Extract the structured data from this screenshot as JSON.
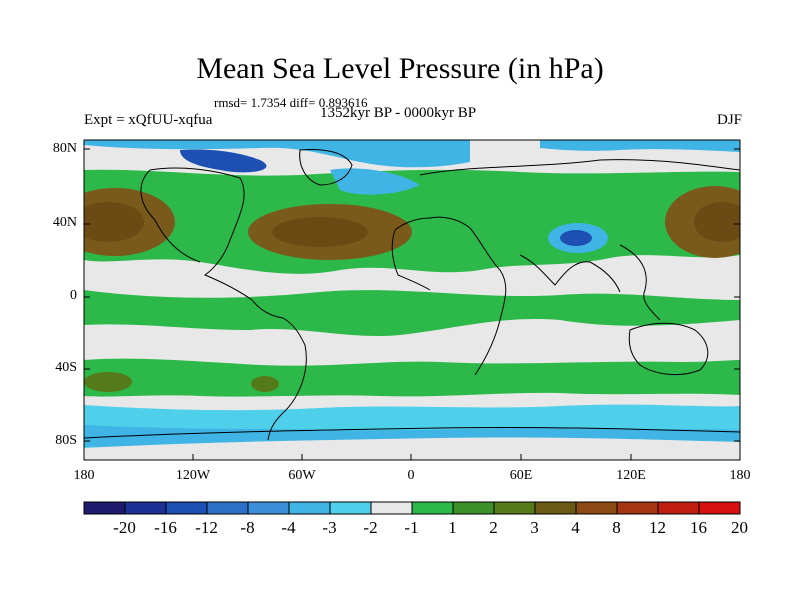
{
  "title": "Mean Sea Level Pressure (in hPa)",
  "stats_line": "rmsd= 1.7354 diff= 0.893616",
  "experiment": "Expt = xQfUU-xqfua",
  "period": "1352kyr BP - 0000kyr BP",
  "season": "DJF",
  "lat_labels": [
    "80N",
    "40N",
    "0",
    "40S",
    "80S"
  ],
  "lon_labels": [
    "180",
    "120W",
    "60W",
    "0",
    "60E",
    "120E",
    "180"
  ],
  "colorbar": {
    "labels": [
      "-20",
      "-16",
      "-12",
      "-8",
      "-4",
      "-3",
      "-2",
      "-1",
      "1",
      "2",
      "3",
      "4",
      "8",
      "12",
      "16",
      "20"
    ],
    "colors": [
      "#1e1b6e",
      "#1c2f94",
      "#1e4fb2",
      "#2b6fc6",
      "#3c8fd8",
      "#40b4e4",
      "#4fd0ea",
      "#e8e8e8",
      "#2db84a",
      "#3d8f2a",
      "#557a1a",
      "#6b5a14",
      "#8b4a14",
      "#a63414",
      "#c01e12",
      "#d8100f"
    ]
  },
  "legend_colors": {
    "neutral": "#e8e8e8",
    "positive_1": "#2db84a",
    "positive_3": "#6b5a14",
    "negative_2": "#40b4e4",
    "negative_4": "#1e4fb2",
    "coastline": "#000000"
  }
}
